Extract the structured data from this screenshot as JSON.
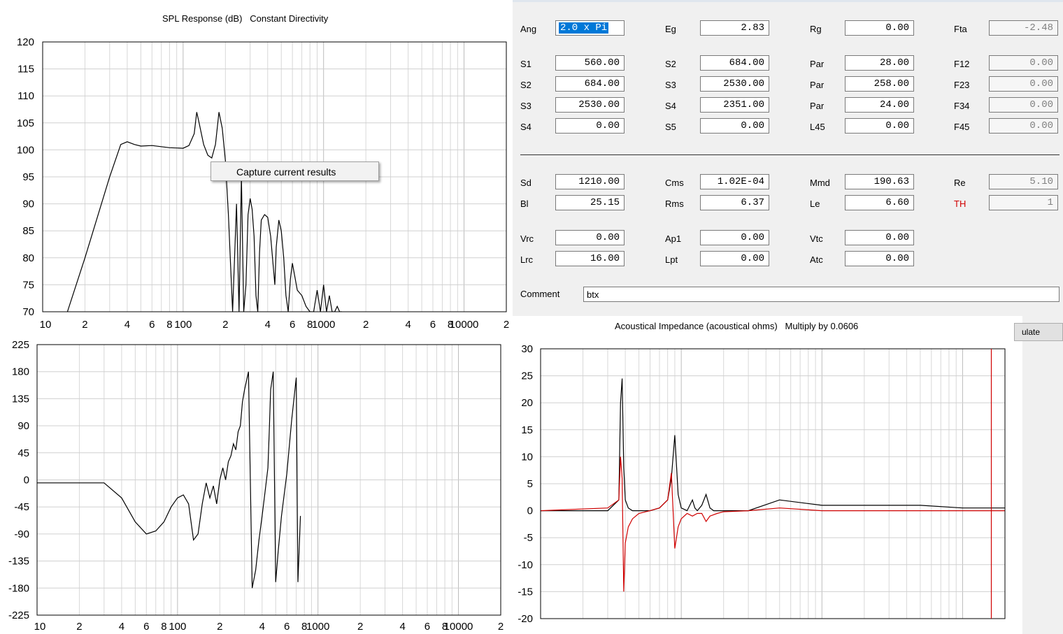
{
  "spl_chart": {
    "title": "SPL Response (dB)   Constant Directivity",
    "y_ticks": [
      "120",
      "115",
      "110",
      "105",
      "100",
      "95",
      "90",
      "85",
      "80",
      "75",
      "70"
    ],
    "x_ticks": [
      "10",
      "2",
      "4",
      "6",
      "8",
      "100",
      "2",
      "4",
      "6",
      "8",
      "1000",
      "2",
      "4",
      "6",
      "8",
      "10000",
      "2"
    ]
  },
  "context_menu": {
    "item": "Capture current results"
  },
  "params": {
    "row1": [
      {
        "label": "Ang",
        "value": "2.0 x Pi"
      },
      {
        "label": "Eg",
        "value": "2.83"
      },
      {
        "label": "Rg",
        "value": "0.00"
      },
      {
        "label": "Fta",
        "value": "-2.48"
      }
    ],
    "row2": [
      {
        "label": "S1",
        "value": "560.00"
      },
      {
        "label": "S2",
        "value": "684.00"
      },
      {
        "label": "Par",
        "value": "28.00"
      },
      {
        "label": "F12",
        "value": "0.00"
      }
    ],
    "row3": [
      {
        "label": "S2",
        "value": "684.00"
      },
      {
        "label": "S3",
        "value": "2530.00"
      },
      {
        "label": "Par",
        "value": "258.00"
      },
      {
        "label": "F23",
        "value": "0.00"
      }
    ],
    "row4": [
      {
        "label": "S3",
        "value": "2530.00"
      },
      {
        "label": "S4",
        "value": "2351.00"
      },
      {
        "label": "Par",
        "value": "24.00"
      },
      {
        "label": "F34",
        "value": "0.00"
      }
    ],
    "row5": [
      {
        "label": "S4",
        "value": "0.00"
      },
      {
        "label": "S5",
        "value": "0.00"
      },
      {
        "label": "L45",
        "value": "0.00"
      },
      {
        "label": "F45",
        "value": "0.00"
      }
    ],
    "row6": [
      {
        "label": "Sd",
        "value": "1210.00"
      },
      {
        "label": "Cms",
        "value": "1.02E-04"
      },
      {
        "label": "Mmd",
        "value": "190.63"
      },
      {
        "label": "Re",
        "value": "5.10"
      }
    ],
    "row7": [
      {
        "label": "Bl",
        "value": "25.15"
      },
      {
        "label": "Rms",
        "value": "6.37"
      },
      {
        "label": "Le",
        "value": "6.60"
      },
      {
        "label": "TH",
        "value": "1"
      }
    ],
    "row8": [
      {
        "label": "Vrc",
        "value": "0.00"
      },
      {
        "label": "Ap1",
        "value": "0.00"
      },
      {
        "label": "Vtc",
        "value": "0.00"
      }
    ],
    "row9": [
      {
        "label": "Lrc",
        "value": "16.00"
      },
      {
        "label": "Lpt",
        "value": "0.00"
      },
      {
        "label": "Atc",
        "value": "0.00"
      }
    ],
    "comment_label": "Comment",
    "comment_value": "btx",
    "th_color": "#d00000"
  },
  "calc_button": {
    "label": "ulate"
  },
  "phase_chart": {
    "y_ticks": [
      "225",
      "180",
      "135",
      "90",
      "45",
      "0",
      "-45",
      "-90",
      "-135",
      "-180",
      "-225"
    ],
    "x_ticks": [
      "10",
      "2",
      "4",
      "6",
      "8",
      "100",
      "2",
      "4",
      "6",
      "8",
      "1000",
      "2",
      "4",
      "6",
      "8",
      "10000",
      "2"
    ]
  },
  "imp_chart": {
    "title": "Acoustical Impedance (acoustical ohms)   Multiply by 0.0606",
    "y_ticks": [
      "30",
      "25",
      "20",
      "15",
      "10",
      "5",
      "0",
      "-5",
      "-10",
      "-15",
      "-20"
    ],
    "series_colors": [
      "#000000",
      "#d00000"
    ]
  },
  "chart_data": [
    {
      "type": "line",
      "title": "SPL Response (dB)   Constant Directivity",
      "xlabel": "",
      "ylabel": "",
      "x_scale": "log",
      "xlim": [
        10,
        20000
      ],
      "ylim": [
        70,
        120
      ],
      "grid": true,
      "series": [
        {
          "x": [
            15,
            20,
            30,
            36,
            40,
            45,
            50,
            60,
            80,
            100,
            110,
            120,
            125,
            130,
            140,
            150,
            160,
            170,
            180,
            190,
            200,
            210,
            225,
            240,
            250,
            260,
            270,
            280,
            290,
            300,
            310,
            320,
            330,
            340,
            350,
            360,
            380,
            400,
            420,
            450,
            460,
            480,
            500,
            520,
            540,
            560,
            580,
            600,
            650,
            700,
            750,
            800,
            850,
            900,
            950,
            1000,
            1050,
            1100,
            1150,
            1200,
            1250,
            1300,
            1350
          ],
          "y": [
            70,
            80,
            95,
            101,
            101.5,
            101,
            100.7,
            100.8,
            100.4,
            100.3,
            100.8,
            103,
            107,
            105,
            101,
            99,
            98.5,
            101,
            107,
            104,
            98,
            88,
            70,
            90,
            70,
            95,
            70,
            75,
            88,
            91,
            89,
            84,
            73,
            70,
            81,
            87,
            88,
            87.5,
            84,
            75,
            82,
            87,
            85,
            80,
            73,
            70,
            76,
            79,
            74,
            73,
            71,
            70,
            70,
            74,
            70,
            75,
            70,
            73,
            70,
            70,
            71,
            70,
            70
          ]
        }
      ]
    },
    {
      "type": "line",
      "title": "",
      "xlabel": "",
      "ylabel": "",
      "x_scale": "log",
      "xlim": [
        10,
        20000
      ],
      "ylim": [
        -225,
        225
      ],
      "grid": true,
      "series": [
        {
          "x": [
            10,
            20,
            30,
            40,
            50,
            60,
            70,
            80,
            90,
            100,
            110,
            120,
            130,
            140,
            150,
            160,
            170,
            180,
            190,
            200,
            210,
            220,
            230,
            240,
            250,
            260,
            270,
            280,
            290,
            300,
            320,
            340,
            360,
            380,
            400,
            420,
            440,
            450,
            460,
            480,
            500,
            520,
            550,
            600,
            650,
            700,
            720,
            750
          ],
          "y": [
            -5,
            -5,
            -5,
            -30,
            -70,
            -90,
            -85,
            -70,
            -45,
            -30,
            -25,
            -40,
            -100,
            -90,
            -40,
            -5,
            -30,
            -10,
            -40,
            0,
            20,
            0,
            30,
            40,
            60,
            50,
            80,
            90,
            130,
            150,
            180,
            -180,
            -150,
            -100,
            -60,
            -20,
            20,
            80,
            150,
            180,
            -170,
            -120,
            -60,
            10,
            100,
            170,
            -170,
            -60
          ]
        }
      ]
    },
    {
      "type": "line",
      "title": "Acoustical Impedance (acoustical ohms)   Multiply by 0.0606",
      "xlabel": "",
      "ylabel": "",
      "x_scale": "log",
      "xlim": [
        10,
        20000
      ],
      "ylim": [
        -20,
        30
      ],
      "grid": true,
      "series": [
        {
          "x": [
            10,
            30,
            36,
            37,
            38,
            39,
            40,
            42,
            45,
            50,
            60,
            70,
            80,
            85,
            90,
            95,
            100,
            110,
            120,
            125,
            130,
            140,
            150,
            160,
            170,
            180,
            200,
            300,
            500,
            1000,
            2000,
            5000,
            10000,
            20000
          ],
          "y": [
            0,
            0,
            2,
            20,
            24.5,
            8,
            2,
            0.5,
            0,
            0,
            0,
            0.5,
            2,
            6,
            14,
            3,
            0.5,
            0,
            2,
            0.5,
            0,
            1,
            3,
            0.5,
            0,
            0,
            0,
            0,
            2,
            1,
            1,
            1,
            0.5,
            0.5
          ]
        },
        {
          "x": [
            10,
            30,
            36,
            37,
            38,
            39,
            40,
            42,
            45,
            50,
            60,
            70,
            80,
            85,
            90,
            95,
            100,
            110,
            120,
            130,
            140,
            150,
            160,
            180,
            200,
            300,
            500,
            1000,
            2000,
            5000,
            10000,
            20000
          ],
          "y": [
            0,
            0.5,
            2,
            10,
            6,
            -15,
            -6,
            -3,
            -1.5,
            -0.5,
            0,
            0.5,
            2,
            7,
            -7,
            -3,
            -1.5,
            -0.5,
            -1,
            -0.5,
            -0.5,
            -2,
            -1,
            -0.5,
            -0.2,
            0,
            0.5,
            0,
            0,
            0,
            0,
            0
          ]
        }
      ]
    }
  ]
}
